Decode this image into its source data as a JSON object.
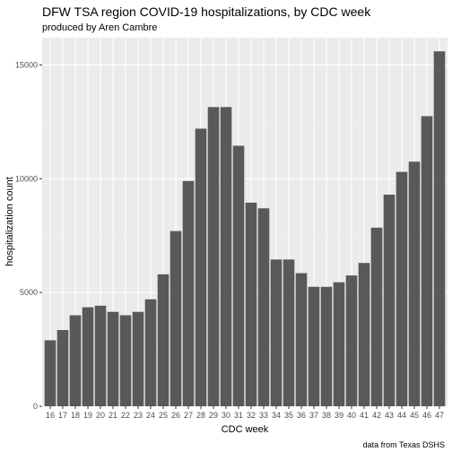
{
  "chart_data": {
    "type": "bar",
    "title": "DFW TSA region COVID-19 hospitalizations, by CDC week",
    "subtitle": "produced by Aren Cambre",
    "xlabel": "CDC week",
    "ylabel": "hospitalization count",
    "caption": "data from Texas DSHS",
    "categories": [
      "16",
      "17",
      "18",
      "19",
      "20",
      "21",
      "22",
      "23",
      "24",
      "25",
      "26",
      "27",
      "28",
      "29",
      "30",
      "31",
      "32",
      "33",
      "34",
      "35",
      "36",
      "37",
      "38",
      "39",
      "40",
      "41",
      "42",
      "43",
      "44",
      "45",
      "46",
      "47"
    ],
    "values": [
      2900,
      3350,
      4000,
      4350,
      4420,
      4150,
      4000,
      4150,
      4700,
      5800,
      7700,
      9900,
      12200,
      13150,
      13150,
      11450,
      8950,
      8700,
      6450,
      6450,
      5850,
      5250,
      5250,
      5450,
      5750,
      6300,
      7850,
      9300,
      10300,
      10750,
      12750,
      15600
    ],
    "ylim": [
      0,
      16200
    ],
    "yticks": [
      0,
      5000,
      10000,
      15000
    ],
    "grid": true,
    "colors": {
      "bar": "#595959",
      "panel": "#ebebeb",
      "grid_major": "#ffffff",
      "grid_minor": "#f5f5f5"
    }
  }
}
